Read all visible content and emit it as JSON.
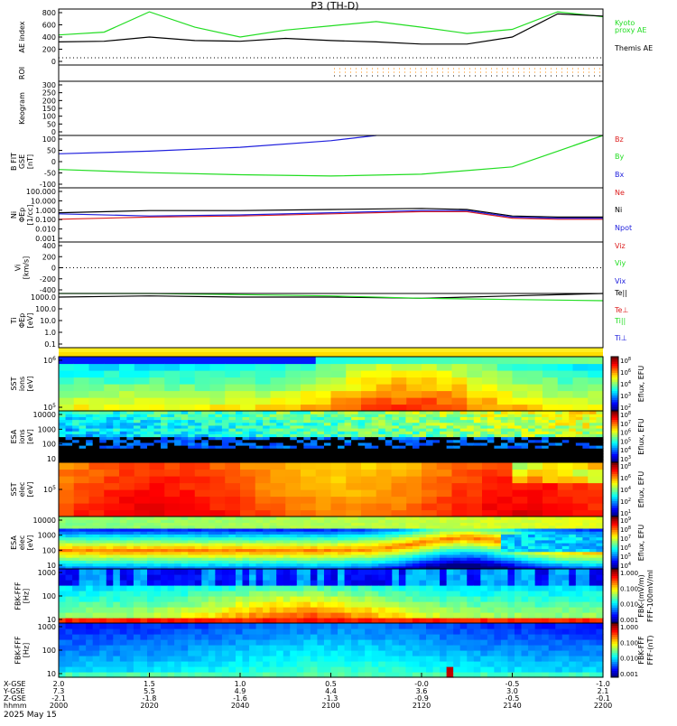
{
  "title": "P3 (TH-D)",
  "date_label": "2025 May 15",
  "colors": {
    "green": "#22dd22",
    "black": "#000000",
    "blue": "#1f1fdd",
    "red": "#dd1f1f",
    "orange": "#ff8800"
  },
  "panels": [
    {
      "id": "ae",
      "ylabel": [
        "AE index"
      ],
      "yticks": [
        "800",
        "600",
        "400",
        "200",
        "0"
      ]
    },
    {
      "id": "roi",
      "ylabel": [
        "ROI"
      ],
      "yticks": []
    },
    {
      "id": "keogram",
      "ylabel": [
        "Keogram"
      ],
      "yticks": [
        "300",
        "250",
        "200",
        "150",
        "100",
        "50",
        "0"
      ]
    },
    {
      "id": "bfield",
      "ylabel": [
        "B FIT",
        "GSE",
        "[nT]"
      ],
      "yticks": [
        "100",
        "50",
        "0",
        "-50",
        "-100"
      ]
    },
    {
      "id": "density",
      "ylabel": [
        "Ni",
        "ΦEp",
        "[1/cc]"
      ],
      "yticks": [
        "100.000",
        "10.000",
        "1.000",
        "0.100",
        "0.010",
        "0.001"
      ]
    },
    {
      "id": "velocity",
      "ylabel": [
        "Vi",
        "[km/s]"
      ],
      "yticks": [
        "400",
        "200",
        "0",
        "-200",
        "-400"
      ]
    },
    {
      "id": "temperature",
      "ylabel": [
        "Ti",
        "ΦEp",
        "[eV]"
      ],
      "yticks": [
        "1000.0",
        "100.0",
        "10.0",
        "1.0",
        "0.1"
      ]
    },
    {
      "id": "sst_ion",
      "ylabel": [
        "SST",
        "ions",
        "[eV]"
      ],
      "yticks": [
        "10^6",
        "10^5"
      ]
    },
    {
      "id": "esa_ion",
      "ylabel": [
        "ESA",
        "ions",
        "[eV]"
      ],
      "yticks": [
        "10000",
        "1000",
        "100",
        "10"
      ]
    },
    {
      "id": "sst_elec",
      "ylabel": [
        "SST",
        "elec",
        "[eV]"
      ],
      "yticks": [
        "10^5"
      ]
    },
    {
      "id": "esa_elec",
      "ylabel": [
        "ESA",
        "elec",
        "[eV]"
      ],
      "yticks": [
        "10000",
        "1000",
        "100",
        "10"
      ]
    },
    {
      "id": "fbk_fff1",
      "ylabel": [
        "FBK-FFF",
        "[Hz]"
      ],
      "yticks": [
        "1000",
        "100",
        "10"
      ]
    },
    {
      "id": "fbk_fff2",
      "ylabel": [
        "FBK-FFF",
        "[Hz]"
      ],
      "yticks": [
        "1000",
        "100",
        "10"
      ]
    }
  ],
  "legends": {
    "ae": [
      {
        "text": "Kyoto",
        "color": "#22dd22"
      },
      {
        "text": "proxy AE",
        "color": "#22dd22"
      },
      {
        "text": "Themis AE",
        "color": "#000000"
      }
    ],
    "bfield": [
      {
        "text": "Bz",
        "color": "#dd1f1f"
      },
      {
        "text": "By",
        "color": "#22dd22"
      },
      {
        "text": "Bx",
        "color": "#1f1fdd"
      }
    ],
    "density": [
      {
        "text": "Ne",
        "color": "#dd1f1f"
      },
      {
        "text": "Ni",
        "color": "#000000"
      },
      {
        "text": "Npot",
        "color": "#1f1fdd"
      }
    ],
    "velocity": [
      {
        "text": "Viz",
        "color": "#dd1f1f"
      },
      {
        "text": "Viy",
        "color": "#22dd22"
      },
      {
        "text": "Vix",
        "color": "#1f1fdd"
      }
    ],
    "temperature": [
      {
        "text": "Te||",
        "color": "#000000"
      },
      {
        "text": "Te⊥",
        "color": "#dd1f1f"
      },
      {
        "text": "Ti||",
        "color": "#22dd22"
      },
      {
        "text": "Ti⊥",
        "color": "#1f1fdd"
      }
    ]
  },
  "colorbars": [
    {
      "id": "cb1",
      "label": "Eflux, EFU",
      "ticks": [
        "10^8",
        "10^6",
        "10^4",
        "10^3",
        "10^2"
      ]
    },
    {
      "id": "cb2",
      "label": "Eflux, EFU",
      "ticks": [
        "10^8",
        "10^7",
        "10^6",
        "10^5",
        "10^4",
        "10^3"
      ]
    },
    {
      "id": "cb3",
      "label": "Eflux, EFU",
      "ticks": [
        "10^8",
        "10^6",
        "10^4",
        "10^2",
        "10^1"
      ]
    },
    {
      "id": "cb4",
      "label": "Eflux, EFU",
      "ticks": [
        "10^9",
        "10^8",
        "10^7",
        "10^6",
        "10^5",
        "10^4"
      ]
    },
    {
      "id": "cb5",
      "label": "FBK-(mV/m)",
      "label2": "FFF-100mV/ml",
      "ticks": [
        "1.000",
        "0.100",
        "0.010",
        "0.001"
      ]
    },
    {
      "id": "cb6",
      "label": "FBK-FFF",
      "label2": "FFF-(nT)",
      "ticks": [
        "1.000",
        "0.100",
        "0.010",
        "0.001"
      ]
    }
  ],
  "xaxis_rows": [
    {
      "label": "X-GSE",
      "values": [
        "2.0",
        "1.5",
        "1.0",
        "0.5",
        "-0.0",
        "-0.5",
        "-1.0"
      ]
    },
    {
      "label": "Y-GSE",
      "values": [
        "7.3",
        "5.5",
        "4.9",
        "4.4",
        "3.6",
        "3.0",
        "2.1"
      ]
    },
    {
      "label": "Z-GSE",
      "values": [
        "-2.1",
        "-1.8",
        "-1.6",
        "-1.3",
        "-0.9",
        "-0.5",
        "-0.1"
      ]
    },
    {
      "label": "hhmm",
      "values": [
        "2000",
        "2020",
        "2040",
        "2100",
        "2120",
        "2140",
        "2200"
      ]
    }
  ],
  "chart_data": {
    "type": "line",
    "title": "P3 (TH-D)",
    "x_hhmm": [
      "2000",
      "2020",
      "2040",
      "2100",
      "2120",
      "2140",
      "2200"
    ],
    "ae_index": {
      "ylim": [
        0,
        800
      ],
      "series": [
        {
          "name": "Kyoto proxy AE",
          "x": [
            0,
            10,
            20,
            30,
            40,
            50,
            60,
            70,
            80,
            90,
            100,
            110,
            120
          ],
          "y": [
            430,
            470,
            760,
            540,
            400,
            500,
            560,
            620,
            540,
            450,
            510,
            760,
            690
          ]
        },
        {
          "name": "Themis AE",
          "x": [
            0,
            10,
            20,
            30,
            40,
            50,
            60,
            70,
            80,
            90,
            100,
            110,
            120
          ],
          "y": [
            330,
            340,
            400,
            350,
            340,
            380,
            350,
            330,
            300,
            300,
            400,
            730,
            700
          ]
        }
      ]
    },
    "b_fit_gse": {
      "ylim": [
        -100,
        100
      ],
      "series": [
        {
          "name": "Bx",
          "x": [
            0,
            20,
            40,
            60,
            70
          ],
          "y": [
            30,
            40,
            55,
            80,
            100
          ]
        },
        {
          "name": "By",
          "x": [
            0,
            20,
            40,
            60,
            80,
            100,
            110,
            120
          ],
          "y": [
            -30,
            -42,
            -50,
            -55,
            -48,
            -20,
            40,
            100
          ]
        }
      ]
    },
    "density_log10": {
      "ylim": [
        -3,
        2
      ],
      "series": [
        {
          "name": "Ni",
          "x": [
            0,
            20,
            40,
            60,
            80,
            90,
            100,
            110,
            120
          ],
          "y": [
            -0.3,
            -0.1,
            -0.1,
            0,
            0.1,
            0,
            -0.6,
            -0.7,
            -0.7
          ]
        },
        {
          "name": "Ne",
          "x": [
            0,
            20,
            40,
            60,
            80,
            90,
            100,
            110,
            120
          ],
          "y": [
            -0.9,
            -0.7,
            -0.6,
            -0.4,
            -0.2,
            -0.2,
            -0.8,
            -0.9,
            -0.9
          ]
        },
        {
          "name": "Npot",
          "x": [
            0,
            20,
            40,
            60,
            80,
            90,
            100,
            110,
            120
          ],
          "y": [
            -0.4,
            -0.6,
            -0.5,
            -0.3,
            -0.1,
            -0.1,
            -0.7,
            -0.8,
            -0.8
          ]
        }
      ]
    },
    "temperature_log10": {
      "ylim": [
        -1,
        3.5
      ],
      "series": [
        {
          "name": "Te||",
          "x": [
            0,
            20,
            40,
            60,
            80,
            100,
            120
          ],
          "y": [
            3.2,
            3.3,
            3.2,
            3.2,
            3.1,
            3.3,
            3.5
          ]
        },
        {
          "name": "Ti||",
          "x": [
            0,
            20,
            40,
            60,
            80,
            100,
            120
          ],
          "y": [
            3.5,
            3.5,
            3.4,
            3.3,
            3.1,
            3.0,
            2.9
          ]
        }
      ]
    }
  }
}
